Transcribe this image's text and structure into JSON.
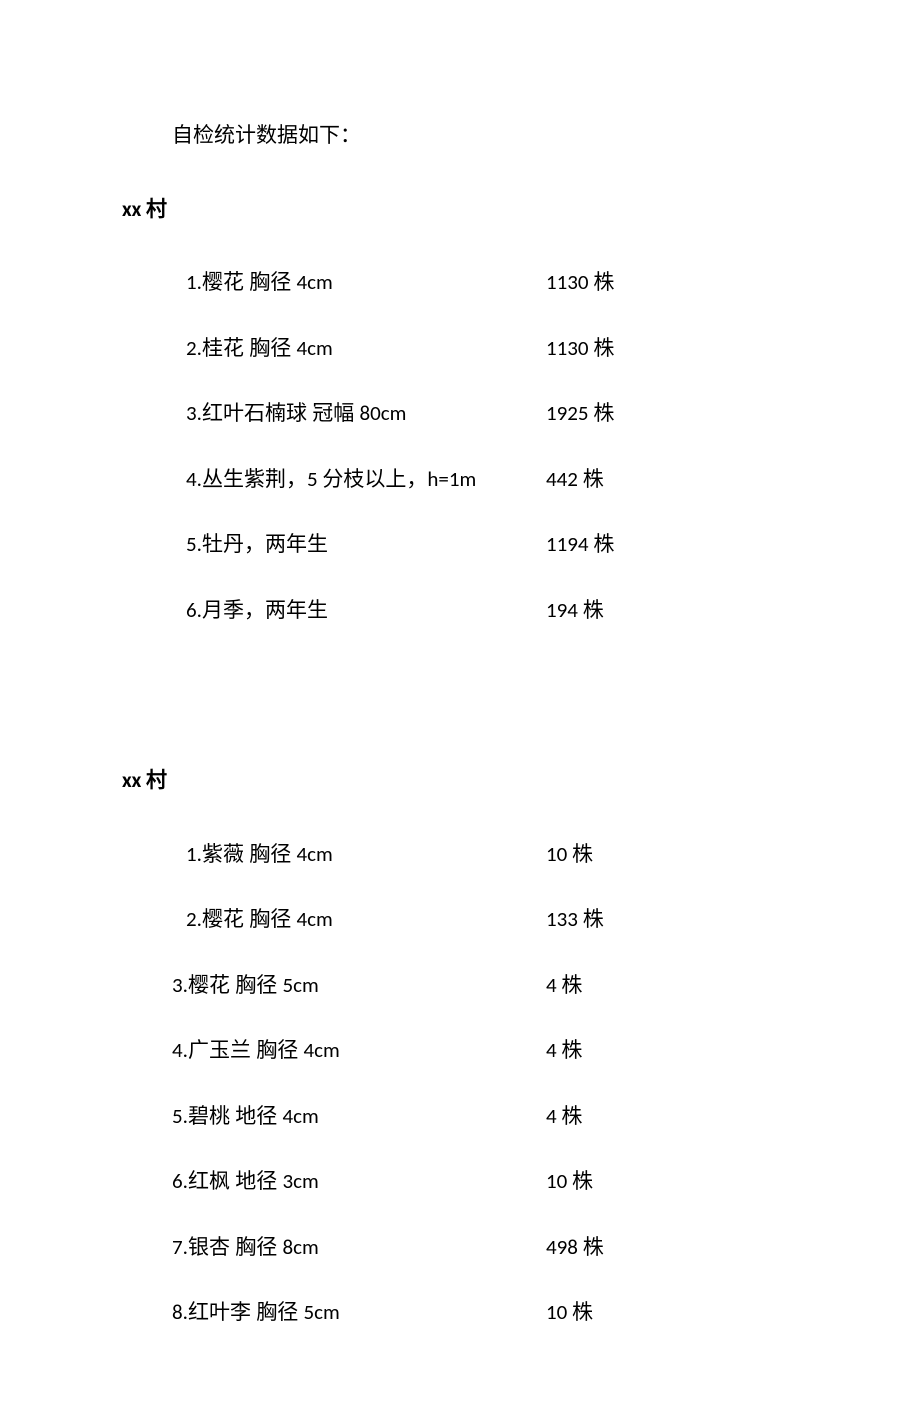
{
  "intro": "自检统计数据如下：",
  "sections": [
    {
      "title": "xx 村",
      "title_html": "<span class='latin'>xx </span>村",
      "rows": [
        {
          "spec_html": "<span class='latin'>1.</span>樱花 胸径 <span class='latin'>4cm</span>",
          "count_html": "<span class='latin'>1130 </span>株",
          "alt": false
        },
        {
          "spec_html": "<span class='latin'>2.</span>桂花 胸径 <span class='latin'>4cm</span>",
          "count_html": "<span class='latin'>1130 </span>株",
          "alt": false
        },
        {
          "spec_html": "<span class='latin'>3.</span>红叶石楠球 冠幅 <span class='latin'>80cm</span>",
          "count_html": "<span class='latin'>1925 </span>株",
          "alt": false
        },
        {
          "spec_html": "<span class='latin'>4.</span>丛生紫荆，<span class='latin'>5 </span>分枝以上，<span class='latin'>h=1m</span>",
          "count_html": "<span class='latin'>442 </span>株",
          "alt": false
        },
        {
          "spec_html": "<span class='latin'>5.</span>牡丹，两年生",
          "count_html": "<span class='latin'>1194 </span>株",
          "alt": false
        },
        {
          "spec_html": "<span class='latin'>6.</span>月季，两年生",
          "count_html": "<span class='latin'>194 </span>株",
          "alt": false
        }
      ]
    },
    {
      "title": "xx 村",
      "title_html": "<span class='latin'>xx </span>村",
      "rows": [
        {
          "spec_html": "<span class='latin'>1.</span>紫薇 胸径 <span class='latin'>4cm</span>",
          "count_html": "<span class='latin'>10 </span>株",
          "alt": false
        },
        {
          "spec_html": "<span class='latin'>2.</span>樱花 胸径 <span class='latin'>4cm</span>",
          "count_html": "<span class='latin'>133 </span>株",
          "alt": false
        },
        {
          "spec_html": "<span class='latin'>3.</span>樱花 胸径 <span class='latin'>5cm</span>",
          "count_html": "<span class='latin'>4 </span>株",
          "alt": true
        },
        {
          "spec_html": "<span class='latin'>4.</span>广玉兰 胸径 <span class='latin'>4cm</span>",
          "count_html": "<span class='latin'>4 </span>株",
          "alt": true
        },
        {
          "spec_html": "<span class='latin'>5.</span>碧桃 地径 <span class='latin'>4cm</span>",
          "count_html": "<span class='latin'>4 </span>株",
          "alt": true
        },
        {
          "spec_html": "<span class='latin'>6.</span>红枫 地径 <span class='latin'>3cm</span>",
          "count_html": "<span class='latin'>10 </span>株",
          "alt": true
        },
        {
          "spec_html": "<span class='latin'>7.</span>银杏 胸径 <span class='latin'>8cm</span>",
          "count_html": "<span class='latin'>498 </span>株",
          "alt": true
        },
        {
          "spec_html": "<span class='latin'>8.</span>红叶李 胸径 <span class='latin'>5cm</span>",
          "count_html": "<span class='latin'>10 </span>株",
          "alt": true
        }
      ]
    }
  ]
}
